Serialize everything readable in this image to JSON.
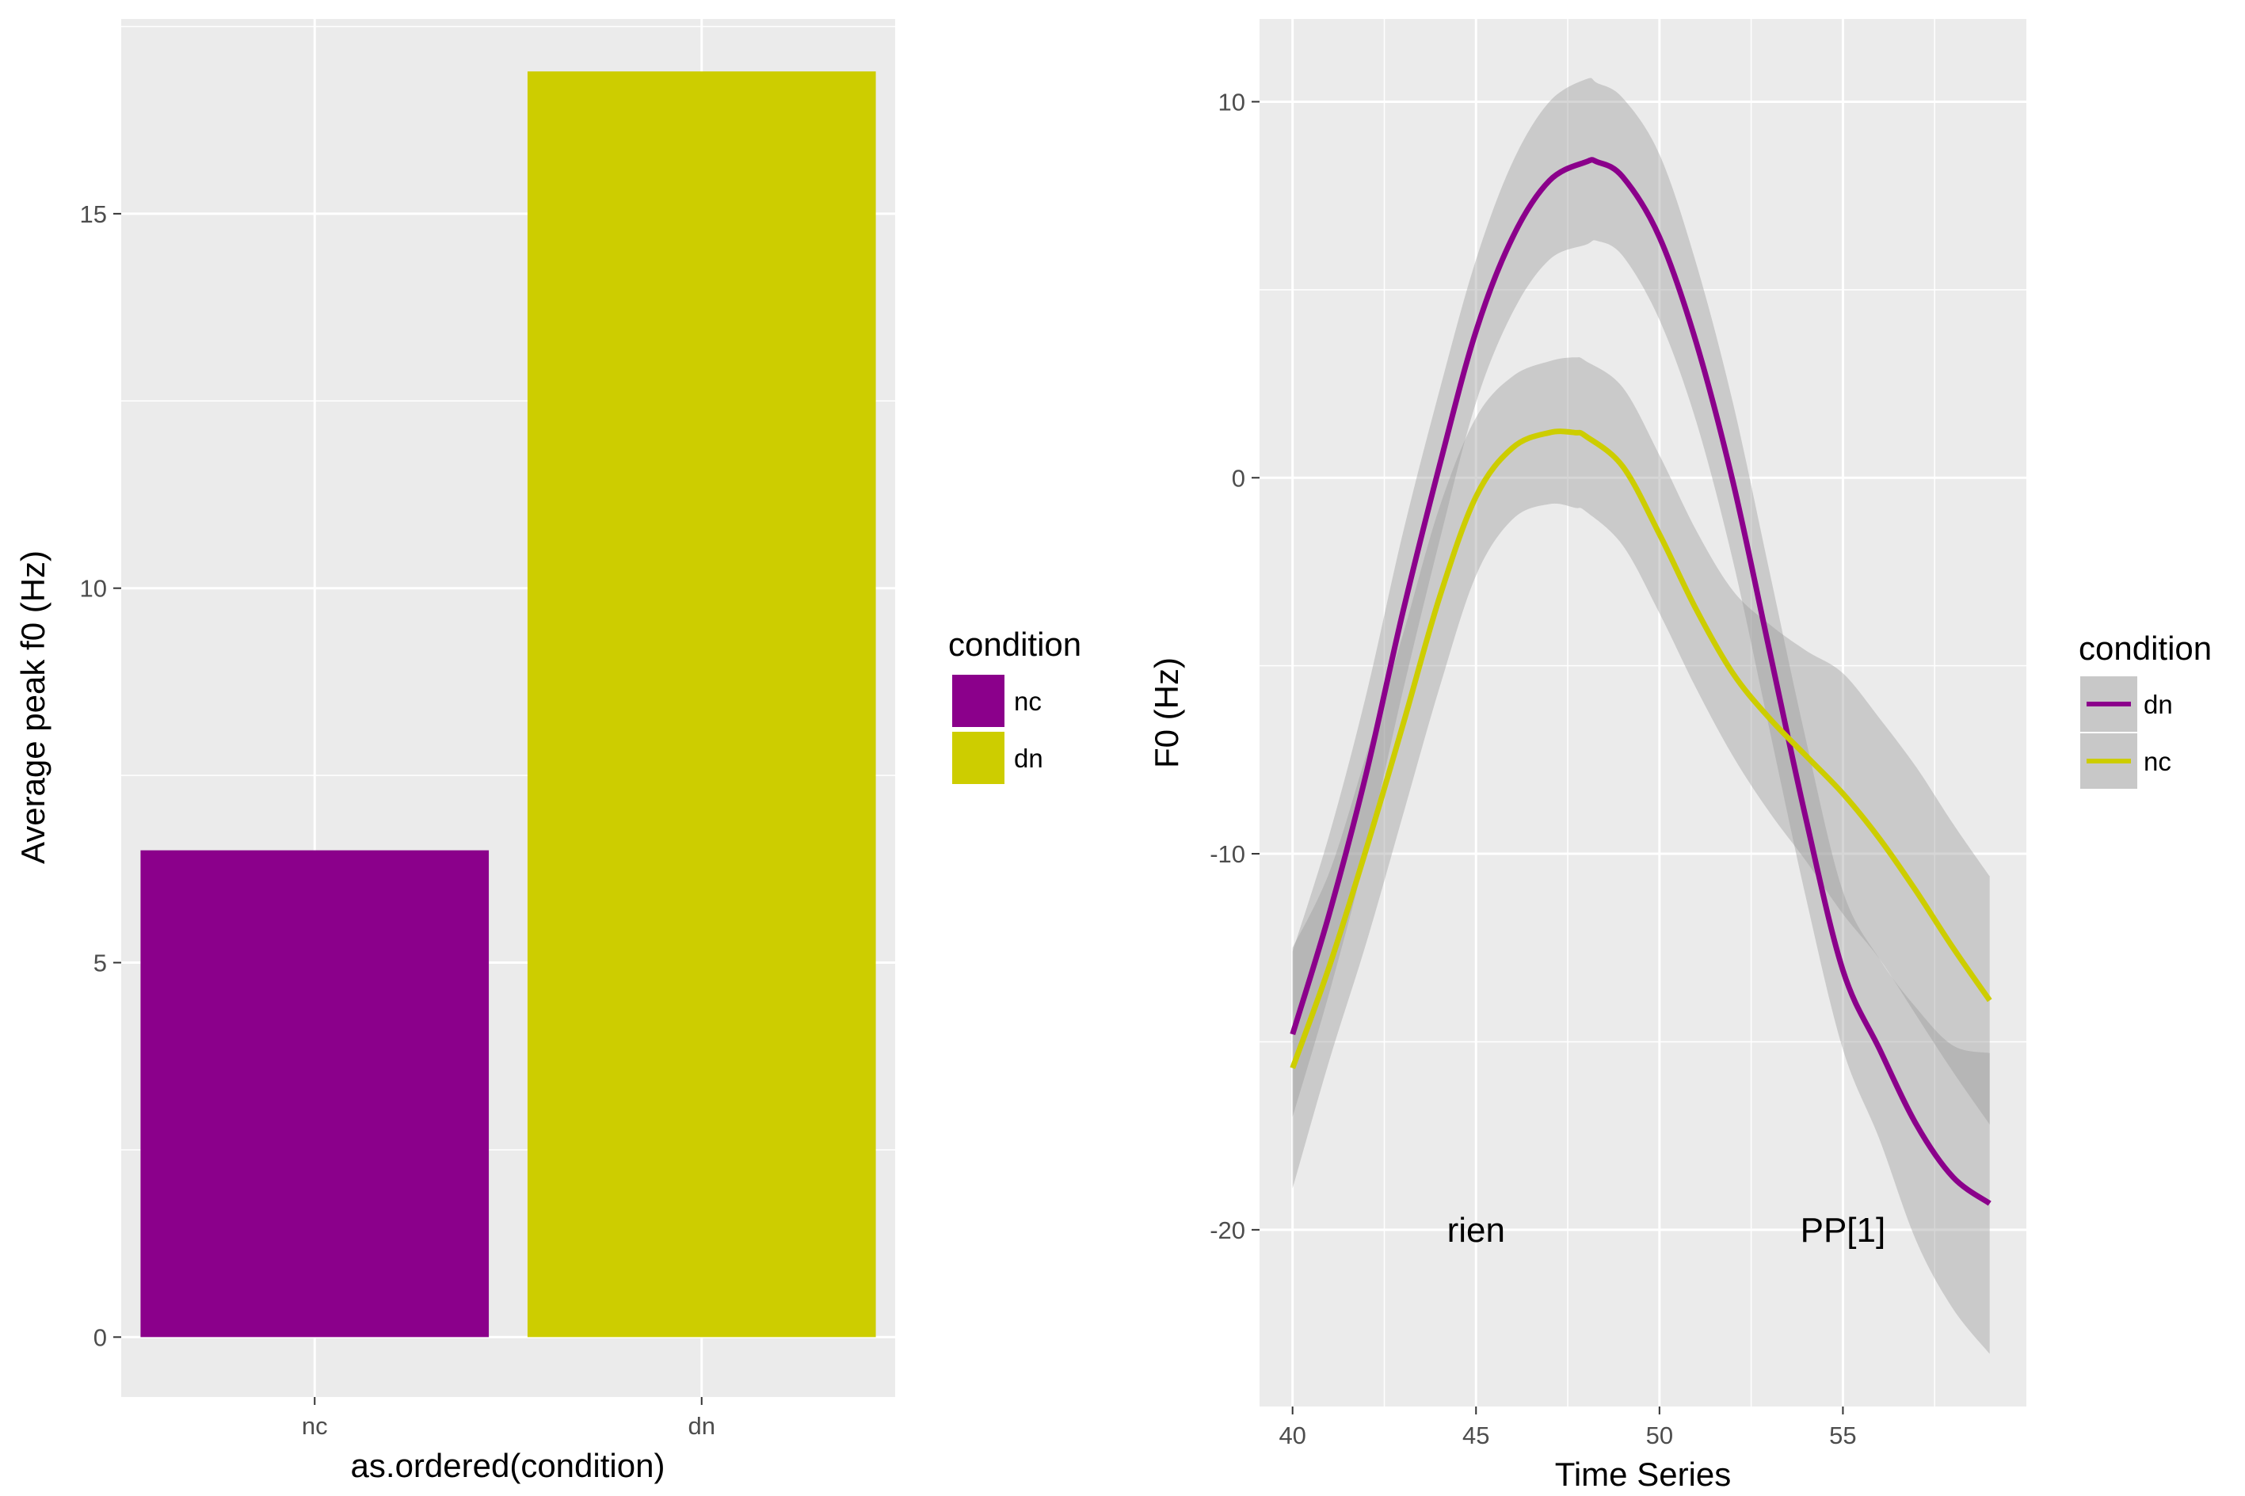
{
  "chart_data": [
    {
      "type": "bar",
      "categories": [
        "nc",
        "dn"
      ],
      "values": [
        6.5,
        16.9
      ],
      "colors": [
        "#8B008B",
        "#CDCD00"
      ],
      "xlabel": "as.ordered(condition)",
      "ylabel": "Average peak f0 (Hz)",
      "ylim": [
        -0.8,
        17.6
      ],
      "yticks": [
        0,
        5,
        10,
        15
      ],
      "grid": true,
      "legend": {
        "title": "condition",
        "placement": "right",
        "items": [
          {
            "label": "nc",
            "color": "#8B008B"
          },
          {
            "label": "dn",
            "color": "#CDCD00"
          }
        ]
      }
    },
    {
      "type": "line",
      "xlabel": "Time Series",
      "ylabel": "F0 (Hz)",
      "xlim": [
        39.1,
        60.0
      ],
      "ylim": [
        -24.7,
        12.2
      ],
      "xticks": [
        40,
        45,
        50,
        55
      ],
      "yticks": [
        -20,
        -10,
        0,
        10
      ],
      "grid": true,
      "confidence_band": true,
      "series": [
        {
          "name": "dn",
          "color": "#8B008B",
          "x": [
            40,
            41,
            42,
            43,
            44,
            45,
            46,
            47,
            48,
            48.3,
            49,
            50,
            51,
            52,
            53,
            54,
            55,
            56,
            57,
            58,
            59
          ],
          "y": [
            -14.8,
            -11.6,
            -7.9,
            -3.6,
            0.3,
            3.9,
            6.4,
            7.9,
            8.4,
            8.4,
            8.0,
            6.4,
            3.6,
            -0.1,
            -4.6,
            -9.1,
            -13.1,
            -15.2,
            -17.2,
            -18.6,
            -19.3
          ],
          "band_lower": [
            -17.0,
            -13.7,
            -10.0,
            -5.7,
            -1.7,
            2.0,
            4.4,
            5.8,
            6.2,
            6.3,
            5.9,
            4.2,
            1.5,
            -2.2,
            -6.7,
            -11.2,
            -15.2,
            -17.6,
            -20.3,
            -22.1,
            -23.3
          ],
          "band_upper": [
            -12.6,
            -9.5,
            -5.8,
            -1.5,
            2.3,
            5.8,
            8.4,
            10.0,
            10.6,
            10.5,
            10.1,
            8.6,
            5.7,
            2.0,
            -2.5,
            -7.0,
            -11.0,
            -12.8,
            -14.1,
            -15.1,
            -15.3
          ]
        },
        {
          "name": "nc",
          "color": "#CDCD00",
          "x": [
            40,
            41,
            42,
            43,
            44,
            45,
            46,
            47,
            47.7,
            48,
            49,
            50,
            51,
            52,
            53,
            54,
            55,
            56,
            57,
            58,
            59
          ],
          "y": [
            -15.7,
            -13.0,
            -9.9,
            -6.6,
            -3.2,
            -0.5,
            0.8,
            1.2,
            1.2,
            1.1,
            0.3,
            -1.5,
            -3.5,
            -5.2,
            -6.4,
            -7.4,
            -8.4,
            -9.6,
            -11.0,
            -12.5,
            -13.9
          ],
          "band_lower": [
            -18.9,
            -15.5,
            -12.4,
            -9.0,
            -5.6,
            -2.6,
            -1.1,
            -0.7,
            -0.8,
            -0.9,
            -1.8,
            -3.6,
            -5.6,
            -7.4,
            -8.9,
            -10.2,
            -11.6,
            -12.8,
            -14.3,
            -15.8,
            -17.2
          ],
          "band_upper": [
            -12.5,
            -10.5,
            -7.4,
            -4.2,
            -0.8,
            1.6,
            2.7,
            3.1,
            3.2,
            3.1,
            2.4,
            0.6,
            -1.4,
            -3.0,
            -3.9,
            -4.6,
            -5.2,
            -6.4,
            -7.7,
            -9.2,
            -10.6
          ]
        }
      ],
      "annotations": [
        {
          "text": "rien",
          "x": 45,
          "y": -20
        },
        {
          "text": "PP[1]",
          "x": 55,
          "y": -20
        }
      ],
      "legend": {
        "title": "condition",
        "placement": "right",
        "items": [
          {
            "label": "dn",
            "color": "#8B008B"
          },
          {
            "label": "nc",
            "color": "#CDCD00"
          }
        ]
      }
    }
  ]
}
